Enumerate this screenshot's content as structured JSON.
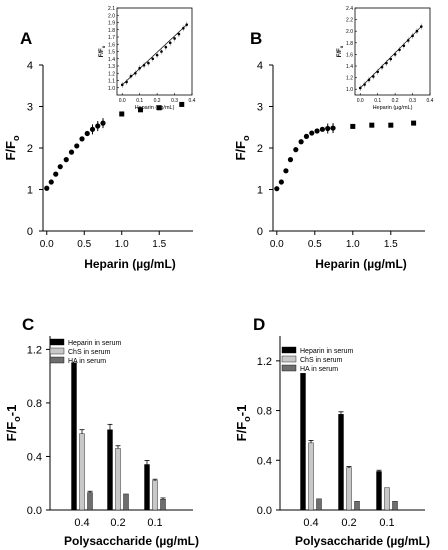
{
  "chart_data": [
    {
      "panel": "A",
      "type": "scatter",
      "xlabel": "Heparin (µg/mL)",
      "ylabel": "F/F",
      "ylabel_sub": "o",
      "xlim": [
        -0.05,
        1.95
      ],
      "ylim": [
        0,
        4
      ],
      "xticks": [
        "0.0",
        "0.5",
        "1.0",
        "1.5"
      ],
      "yticks": [
        "0",
        "1",
        "2",
        "3",
        "4"
      ],
      "series": [
        {
          "points": [
            {
              "x": 0.0,
              "y": 1.03
            },
            {
              "x": 0.06,
              "y": 1.18
            },
            {
              "x": 0.12,
              "y": 1.37
            },
            {
              "x": 0.18,
              "y": 1.55
            },
            {
              "x": 0.26,
              "y": 1.72
            },
            {
              "x": 0.33,
              "y": 1.9
            },
            {
              "x": 0.4,
              "y": 2.05
            },
            {
              "x": 0.47,
              "y": 2.22
            },
            {
              "x": 0.54,
              "y": 2.35
            },
            {
              "x": 0.61,
              "y": 2.45
            },
            {
              "x": 0.68,
              "y": 2.53
            },
            {
              "x": 0.75,
              "y": 2.6
            },
            {
              "x": 1.0,
              "y": 2.82
            },
            {
              "x": 1.25,
              "y": 2.92
            },
            {
              "x": 1.5,
              "y": 2.97
            },
            {
              "x": 1.8,
              "y": 3.05
            }
          ]
        }
      ],
      "inset": {
        "xlabel": "Heparin (µg/mL)",
        "ylabel": "F/F",
        "ylabel_sub": "o",
        "xlim": [
          -0.03,
          0.4
        ],
        "ylim": [
          0.9,
          2.1
        ],
        "xticks": [
          "0.0",
          "0.1",
          "0.2",
          "0.3",
          "0.4"
        ],
        "yticks": [
          "1.0",
          "1.1",
          "1.2",
          "1.3",
          "1.4",
          "1.5",
          "1.6",
          "1.7",
          "1.8",
          "1.9",
          "2.0",
          "2.1"
        ],
        "points": [
          {
            "x": 0.0,
            "y": 1.04
          },
          {
            "x": 0.025,
            "y": 1.08
          },
          {
            "x": 0.05,
            "y": 1.16
          },
          {
            "x": 0.075,
            "y": 1.2
          },
          {
            "x": 0.1,
            "y": 1.27
          },
          {
            "x": 0.125,
            "y": 1.31
          },
          {
            "x": 0.15,
            "y": 1.34
          },
          {
            "x": 0.175,
            "y": 1.4
          },
          {
            "x": 0.2,
            "y": 1.45
          },
          {
            "x": 0.225,
            "y": 1.5
          },
          {
            "x": 0.25,
            "y": 1.56
          },
          {
            "x": 0.275,
            "y": 1.62
          },
          {
            "x": 0.3,
            "y": 1.68
          },
          {
            "x": 0.325,
            "y": 1.74
          },
          {
            "x": 0.35,
            "y": 1.82
          },
          {
            "x": 0.37,
            "y": 1.87
          }
        ]
      }
    },
    {
      "panel": "B",
      "type": "scatter",
      "xlabel": "Heparin (µg/mL)",
      "ylabel": "F/F",
      "ylabel_sub": "o",
      "xlim": [
        -0.05,
        1.95
      ],
      "ylim": [
        0,
        4
      ],
      "xticks": [
        "0.0",
        "0.5",
        "1.0",
        "1.5"
      ],
      "yticks": [
        "0",
        "1",
        "2",
        "3",
        "4"
      ],
      "series": [
        {
          "points": [
            {
              "x": 0.0,
              "y": 1.02
            },
            {
              "x": 0.06,
              "y": 1.18
            },
            {
              "x": 0.12,
              "y": 1.45
            },
            {
              "x": 0.18,
              "y": 1.72
            },
            {
              "x": 0.25,
              "y": 1.96
            },
            {
              "x": 0.32,
              "y": 2.15
            },
            {
              "x": 0.39,
              "y": 2.28
            },
            {
              "x": 0.46,
              "y": 2.36
            },
            {
              "x": 0.53,
              "y": 2.41
            },
            {
              "x": 0.6,
              "y": 2.45
            },
            {
              "x": 0.67,
              "y": 2.47
            },
            {
              "x": 0.74,
              "y": 2.48
            },
            {
              "x": 1.0,
              "y": 2.52
            },
            {
              "x": 1.25,
              "y": 2.55
            },
            {
              "x": 1.5,
              "y": 2.55
            },
            {
              "x": 1.8,
              "y": 2.6
            }
          ]
        }
      ],
      "inset": {
        "xlabel": "Heparin (µg/mL)",
        "ylabel": "F/F",
        "ylabel_sub": "o",
        "xlim": [
          -0.03,
          0.4
        ],
        "ylim": [
          0.9,
          2.4
        ],
        "xticks": [
          "0.0",
          "0.1",
          "0.2",
          "0.3",
          "0.4"
        ],
        "yticks": [
          "1.0",
          "1.2",
          "1.4",
          "1.6",
          "1.8",
          "2.0",
          "2.2",
          "2.4"
        ],
        "points": [
          {
            "x": 0.0,
            "y": 1.02
          },
          {
            "x": 0.025,
            "y": 1.08
          },
          {
            "x": 0.05,
            "y": 1.16
          },
          {
            "x": 0.075,
            "y": 1.22
          },
          {
            "x": 0.1,
            "y": 1.3
          },
          {
            "x": 0.125,
            "y": 1.38
          },
          {
            "x": 0.15,
            "y": 1.45
          },
          {
            "x": 0.175,
            "y": 1.52
          },
          {
            "x": 0.2,
            "y": 1.6
          },
          {
            "x": 0.225,
            "y": 1.68
          },
          {
            "x": 0.25,
            "y": 1.75
          },
          {
            "x": 0.275,
            "y": 1.84
          },
          {
            "x": 0.3,
            "y": 1.92
          },
          {
            "x": 0.325,
            "y": 2.0
          },
          {
            "x": 0.35,
            "y": 2.08
          }
        ]
      }
    },
    {
      "panel": "C",
      "type": "bar",
      "xlabel": "Polysaccharide (µg/mL)",
      "ylabel": "F/F",
      "ylabel_sub": "o",
      "ylabel_suffix": "-1",
      "ylim": [
        0,
        1.3
      ],
      "yticks": [
        "0.0",
        "0.4",
        "0.8",
        "1.2"
      ],
      "categories": [
        "0.4",
        "0.2",
        "0.1"
      ],
      "series": [
        {
          "name": "Heparin in serum",
          "color": "#000000",
          "values": [
            1.1,
            0.6,
            0.34
          ],
          "errors": [
            0.0,
            0.04,
            0.03
          ]
        },
        {
          "name": "ChS in serum",
          "color": "#c8c8c8",
          "values": [
            0.57,
            0.46,
            0.22
          ],
          "errors": [
            0.03,
            0.02,
            0.01
          ]
        },
        {
          "name": "HA in serum",
          "color": "#6e6e6e",
          "values": [
            0.13,
            0.12,
            0.08
          ],
          "errors": [
            0.01,
            0.0,
            0.01
          ]
        }
      ]
    },
    {
      "panel": "D",
      "type": "bar",
      "xlabel": "Polysaccharide (µg/mL)",
      "ylabel": "F/F",
      "ylabel_sub": "o",
      "ylabel_suffix": "-1",
      "ylim": [
        0,
        1.4
      ],
      "yticks": [
        "0.0",
        "0.4",
        "0.8",
        "1.2"
      ],
      "categories": [
        "0.4",
        "0.2",
        "0.1"
      ],
      "series": [
        {
          "name": "Heparin in serum",
          "color": "#000000",
          "values": [
            1.1,
            0.77,
            0.31
          ],
          "errors": [
            0.0,
            0.02,
            0.01
          ]
        },
        {
          "name": "ChS in serum",
          "color": "#c8c8c8",
          "values": [
            0.54,
            0.34,
            0.18
          ],
          "errors": [
            0.02,
            0.01,
            0.0
          ]
        },
        {
          "name": "HA in serum",
          "color": "#6e6e6e",
          "values": [
            0.09,
            0.07,
            0.07
          ],
          "errors": [
            0.0,
            0.0,
            0.0
          ]
        }
      ]
    }
  ]
}
